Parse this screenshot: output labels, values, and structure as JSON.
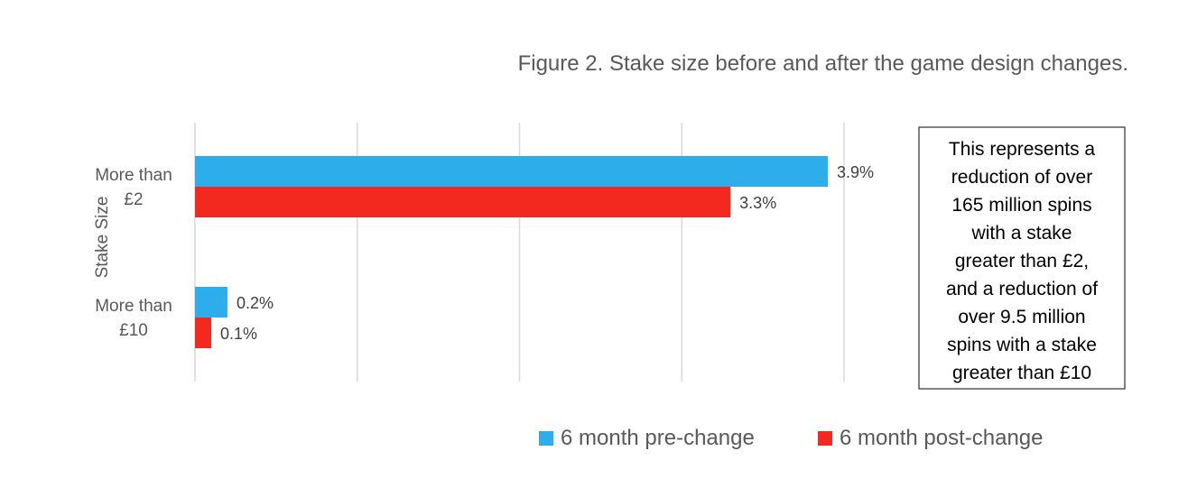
{
  "chart_data": {
    "type": "bar",
    "orientation": "horizontal",
    "title": "Figure 2. Stake size before and after the game design changes.",
    "ylabel": "Stake Size",
    "xlabel": "",
    "categories": [
      [
        "More than",
        "£2"
      ],
      [
        "More than",
        "£10"
      ]
    ],
    "series": [
      {
        "name": "6 month pre-change",
        "color": "#2DAEEB",
        "values": [
          3.9,
          0.2
        ],
        "labels": [
          "3.9%",
          "0.2%"
        ]
      },
      {
        "name": "6 month post-change",
        "color": "#F3291F",
        "values": [
          3.3,
          0.1
        ],
        "labels": [
          "3.3%",
          "0.1%"
        ]
      }
    ],
    "xlim": [
      0,
      4
    ],
    "grid": true,
    "legend": "bottom-center",
    "annotation": [
      "This represents a",
      "reduction of over",
      "165 million spins",
      "with a stake",
      "greater than £2,",
      "and a reduction of",
      "over 9.5 million",
      "spins with a stake",
      "greater than £10"
    ]
  }
}
